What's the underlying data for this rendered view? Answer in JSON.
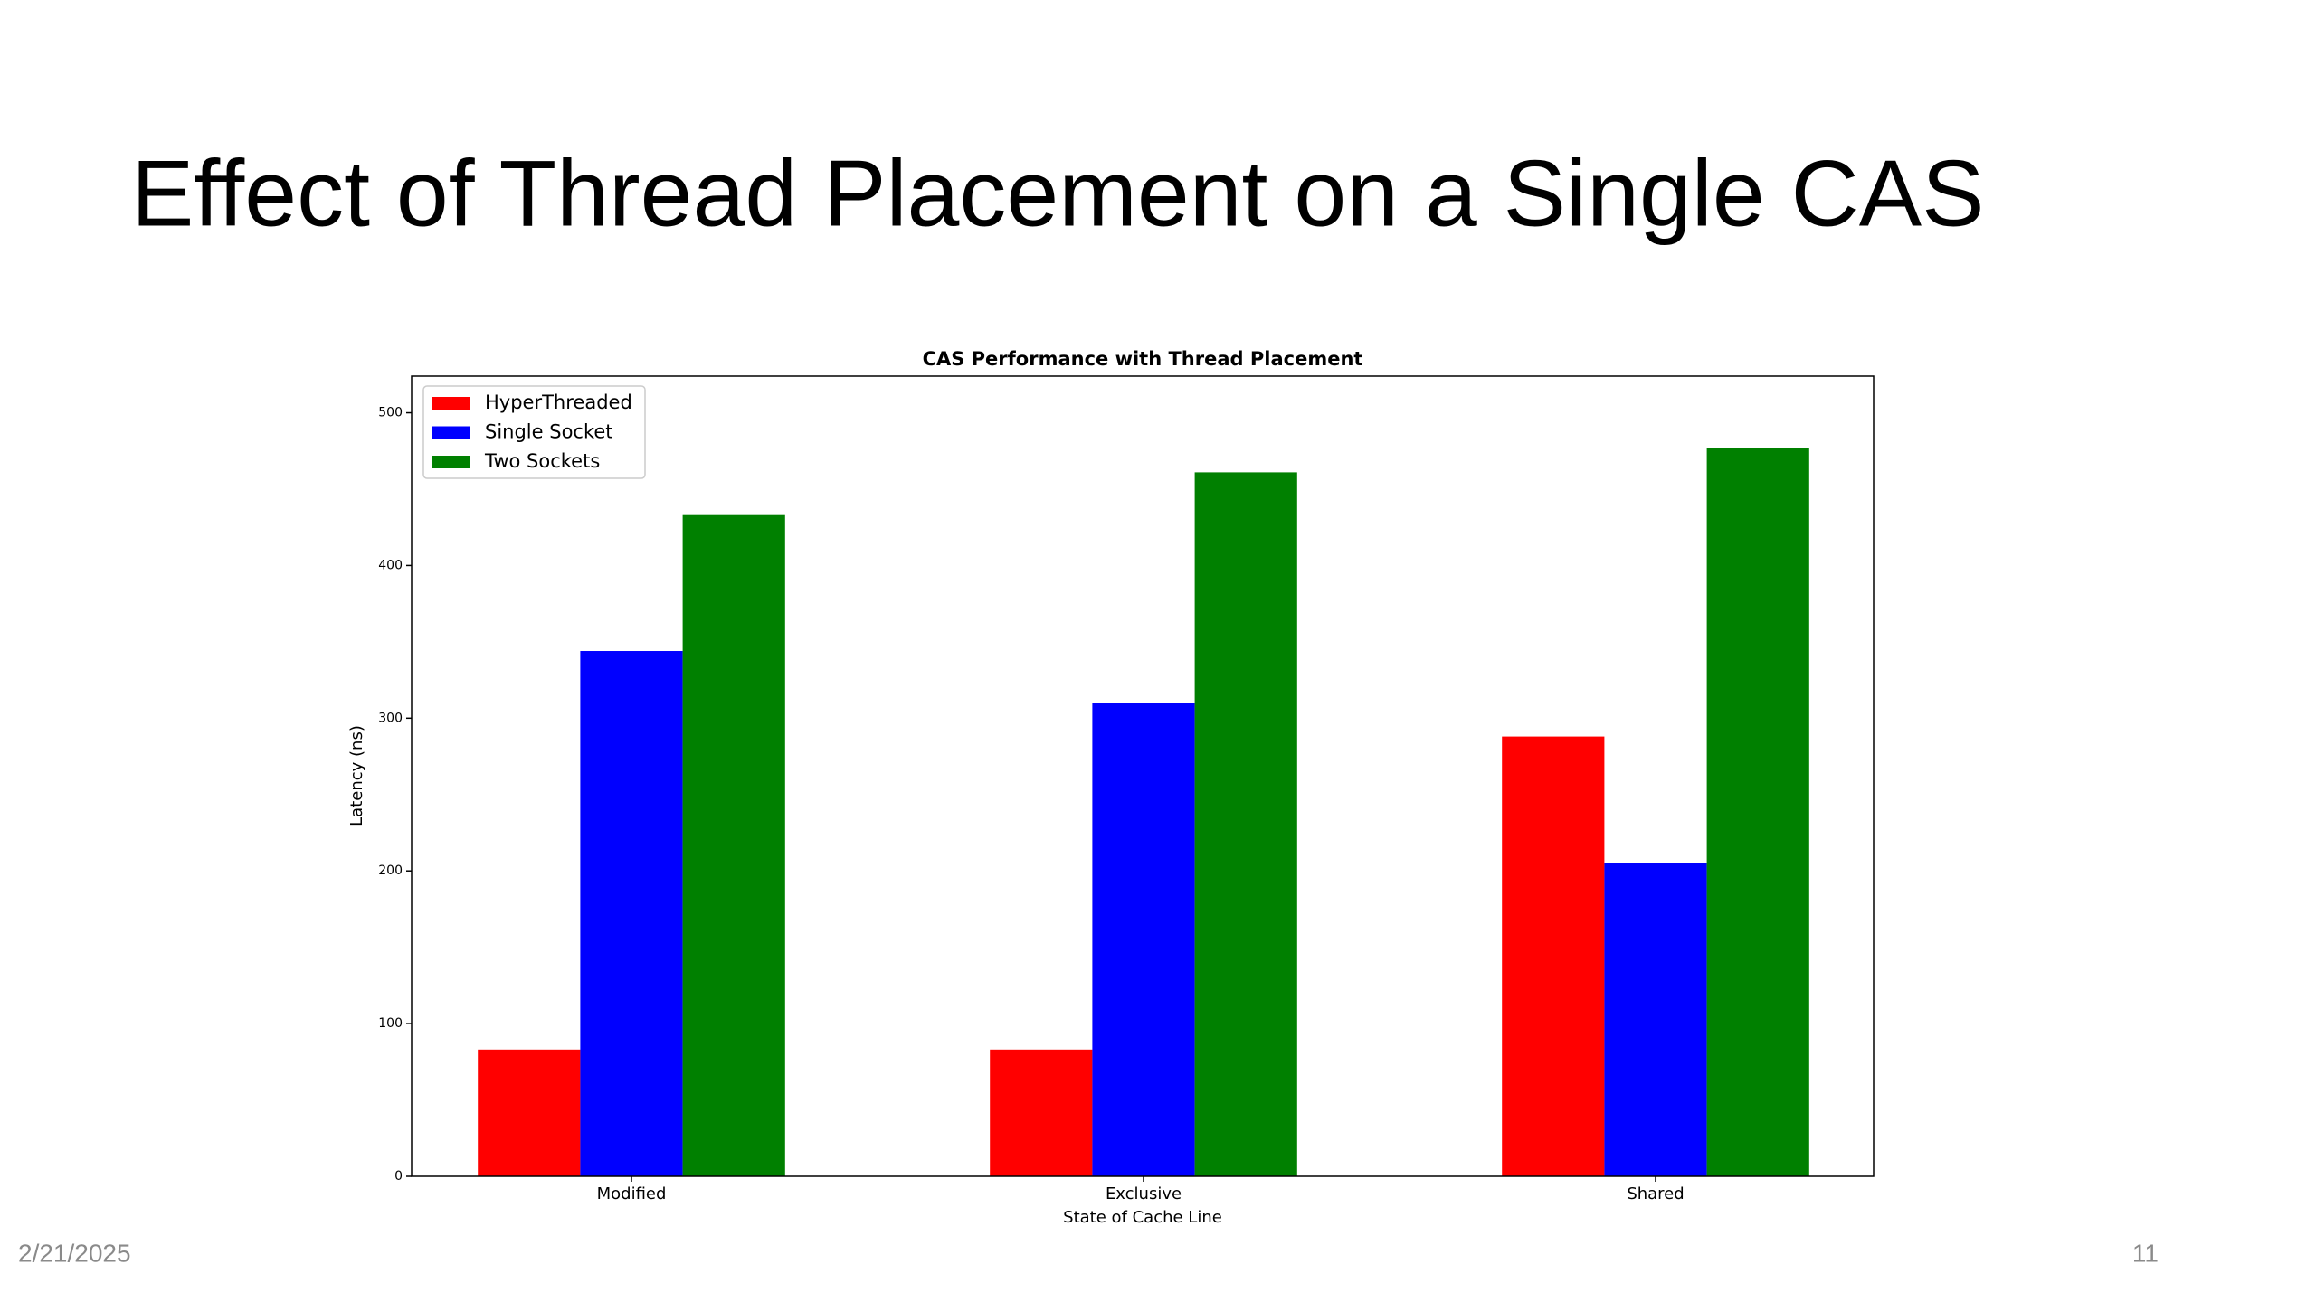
{
  "slide": {
    "title": "Effect of Thread Placement on a Single CAS",
    "date": "2/21/2025",
    "page": "11"
  },
  "chart_data": {
    "type": "bar",
    "title": "CAS Performance with Thread Placement",
    "xlabel": "State of Cache Line",
    "ylabel": "Latency (ns)",
    "categories": [
      "Modified",
      "Exclusive",
      "Shared"
    ],
    "series": [
      {
        "name": "HyperThreaded",
        "color": "#ff0000",
        "values": [
          83,
          83,
          288
        ]
      },
      {
        "name": "Single Socket",
        "color": "#0000ff",
        "values": [
          344,
          310,
          205
        ]
      },
      {
        "name": "Two Sockets",
        "color": "#008000",
        "values": [
          433,
          461,
          477
        ]
      }
    ],
    "ylim": [
      0,
      524
    ],
    "yticks": [
      0,
      100,
      200,
      300,
      400,
      500
    ],
    "legend": "upper left"
  }
}
